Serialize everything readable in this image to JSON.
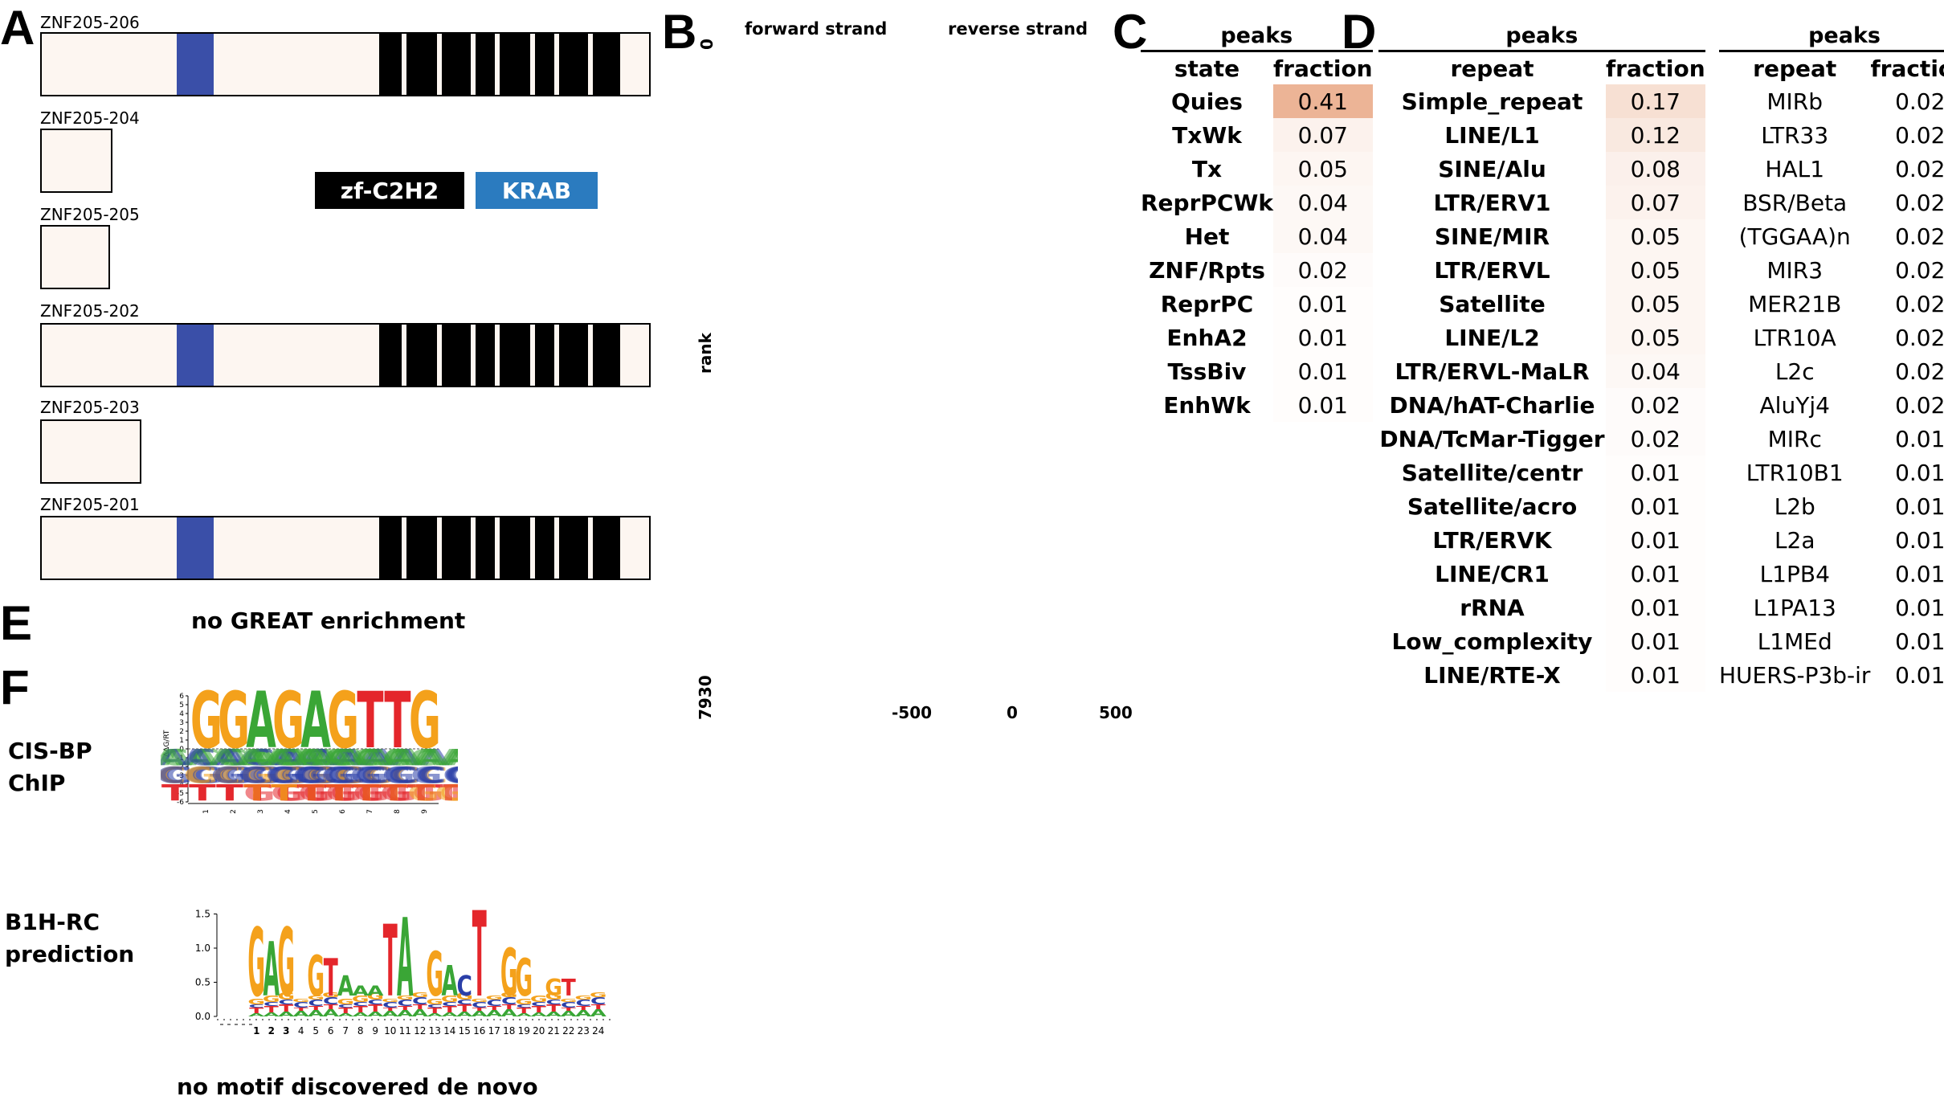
{
  "panels": {
    "A": "A",
    "B": "B",
    "C": "C",
    "D": "D",
    "E": "E",
    "F": "F"
  },
  "panelA": {
    "isoforms": [
      {
        "name": "ZNF205-206"
      },
      {
        "name": "ZNF205-204"
      },
      {
        "name": "ZNF205-205"
      },
      {
        "name": "ZNF205-202"
      },
      {
        "name": "ZNF205-203"
      },
      {
        "name": "ZNF205-201"
      }
    ],
    "legend": {
      "zf": "zf-C2H2",
      "krab": "KRAB"
    },
    "colors": {
      "zf": "#000000",
      "krab": "#2b7bbf",
      "krab_band": "#3a4fa8",
      "box_fill": "#fdf6f1"
    }
  },
  "panelB": {
    "forward": "forward strand",
    "reverse": "reverse strand",
    "rank_label": "rank",
    "rank_top": "0",
    "rank_bottom": "7930",
    "x_ticks": [
      "-500",
      "0",
      "500"
    ]
  },
  "panelC": {
    "group_header": "peaks",
    "col_state": "state",
    "col_fraction": "fraction",
    "rows": [
      {
        "label": "Quies",
        "value": "0.41",
        "fraction": 0.41
      },
      {
        "label": "TxWk",
        "value": "0.07",
        "fraction": 0.07
      },
      {
        "label": "Tx",
        "value": "0.05",
        "fraction": 0.05
      },
      {
        "label": "ReprPCWk",
        "value": "0.04",
        "fraction": 0.04
      },
      {
        "label": "Het",
        "value": "0.04",
        "fraction": 0.04
      },
      {
        "label": "ZNF/Rpts",
        "value": "0.02",
        "fraction": 0.02
      },
      {
        "label": "ReprPC",
        "value": "0.01",
        "fraction": 0.01
      },
      {
        "label": "EnhA2",
        "value": "0.01",
        "fraction": 0.01
      },
      {
        "label": "TssBiv",
        "value": "0.01",
        "fraction": 0.01
      },
      {
        "label": "EnhWk",
        "value": "0.01",
        "fraction": 0.01
      }
    ]
  },
  "panelD": {
    "group_header": "peaks",
    "col_repeat": "repeat",
    "col_fraction": "fraction",
    "left_rows": [
      {
        "label": "Simple_repeat",
        "value": "0.17",
        "fraction": 0.17
      },
      {
        "label": "LINE/L1",
        "value": "0.12",
        "fraction": 0.12
      },
      {
        "label": "SINE/Alu",
        "value": "0.08",
        "fraction": 0.08
      },
      {
        "label": "LTR/ERV1",
        "value": "0.07",
        "fraction": 0.07
      },
      {
        "label": "SINE/MIR",
        "value": "0.05",
        "fraction": 0.05
      },
      {
        "label": "LTR/ERVL",
        "value": "0.05",
        "fraction": 0.05
      },
      {
        "label": "Satellite",
        "value": "0.05",
        "fraction": 0.05
      },
      {
        "label": "LINE/L2",
        "value": "0.05",
        "fraction": 0.05
      },
      {
        "label": "LTR/ERVL-MaLR",
        "value": "0.04",
        "fraction": 0.04
      },
      {
        "label": "DNA/hAT-Charlie",
        "value": "0.02",
        "fraction": 0.02
      },
      {
        "label": "DNA/TcMar-Tigger",
        "value": "0.02",
        "fraction": 0.02
      },
      {
        "label": "Satellite/centr",
        "value": "0.01",
        "fraction": 0.01
      },
      {
        "label": "Satellite/acro",
        "value": "0.01",
        "fraction": 0.01
      },
      {
        "label": "LTR/ERVK",
        "value": "0.01",
        "fraction": 0.01
      },
      {
        "label": "LINE/CR1",
        "value": "0.01",
        "fraction": 0.01
      },
      {
        "label": "rRNA",
        "value": "0.01",
        "fraction": 0.01
      },
      {
        "label": "Low_complexity",
        "value": "0.01",
        "fraction": 0.01
      },
      {
        "label": "LINE/RTE-X",
        "value": "0.01",
        "fraction": 0.01
      }
    ],
    "right_rows": [
      {
        "label": "MIRb",
        "value": "0.02"
      },
      {
        "label": "LTR33",
        "value": "0.02"
      },
      {
        "label": "HAL1",
        "value": "0.02"
      },
      {
        "label": "BSR/Beta",
        "value": "0.02"
      },
      {
        "label": "(TGGAA)n",
        "value": "0.02"
      },
      {
        "label": "MIR3",
        "value": "0.02"
      },
      {
        "label": "MER21B",
        "value": "0.02"
      },
      {
        "label": "LTR10A",
        "value": "0.02"
      },
      {
        "label": "L2c",
        "value": "0.02"
      },
      {
        "label": "AluYj4",
        "value": "0.02"
      },
      {
        "label": "MIRc",
        "value": "0.01"
      },
      {
        "label": "LTR10B1",
        "value": "0.01"
      },
      {
        "label": "L2b",
        "value": "0.01"
      },
      {
        "label": "L2a",
        "value": "0.01"
      },
      {
        "label": "L1PB4",
        "value": "0.01"
      },
      {
        "label": "L1PA13",
        "value": "0.01"
      },
      {
        "label": "L1MEd",
        "value": "0.01"
      },
      {
        "label": "HUERS-P3b-ir",
        "value": "0.01"
      }
    ]
  },
  "panelE": {
    "text": "no GREAT enrichment"
  },
  "panelF": {
    "cisbp_label_1": "CIS-BP",
    "cisbp_label_2": "ChIP",
    "b1h_label_1": "B1H-RC",
    "b1h_label_2": "prediction",
    "denovo": "no motif discovered de novo",
    "logo1": {
      "ylabel": "ΔΔG/RT",
      "yticks": [
        "6",
        "5",
        "4",
        "3",
        "2",
        "1",
        "0",
        "-1",
        "-2",
        "-3",
        "-4",
        "-5",
        "-6"
      ],
      "xticks": [
        "1",
        "2",
        "3",
        "4",
        "5",
        "6",
        "7",
        "8",
        "9"
      ],
      "top_letters": [
        "G",
        "G",
        "A",
        "G",
        "A",
        "G",
        "T",
        "T",
        "G"
      ],
      "rows": [
        "AACACAAAA",
        "CCGCGCCCC",
        "TTTTTTGGT"
      ]
    },
    "logo2": {
      "yticks": [
        "1.5",
        "1.0",
        "0.5",
        "0.0"
      ],
      "xticks": [
        "1",
        "2",
        "3",
        "4",
        "5",
        "6",
        "7",
        "8",
        "9",
        "10",
        "11",
        "12",
        "13",
        "14",
        "15",
        "16",
        "17",
        "18",
        "19",
        "20",
        "21",
        "22",
        "23",
        "24"
      ],
      "main_letters": [
        {
          "pos": "1",
          "l": "G",
          "h": 1.3
        },
        {
          "pos": "2",
          "l": "A",
          "h": 1.1
        },
        {
          "pos": "3",
          "l": "G",
          "h": 1.3
        },
        {
          "pos": "5",
          "l": "G",
          "h": 0.9
        },
        {
          "pos": "6",
          "l": "T",
          "h": 0.85
        },
        {
          "pos": "7",
          "l": "A",
          "h": 0.6
        },
        {
          "pos": "8",
          "l": "A",
          "h": 0.45
        },
        {
          "pos": "9",
          "l": "A",
          "h": 0.25
        },
        {
          "pos": "10",
          "l": "T",
          "h": 1.35
        },
        {
          "pos": "11",
          "l": "A",
          "h": 1.45
        },
        {
          "pos": "13",
          "l": "G",
          "h": 0.95
        },
        {
          "pos": "14",
          "l": "A",
          "h": 0.75
        },
        {
          "pos": "15",
          "l": "C",
          "h": 0.6
        },
        {
          "pos": "16",
          "l": "T",
          "h": 1.55
        },
        {
          "pos": "18",
          "l": "G",
          "h": 1.0
        },
        {
          "pos": "19",
          "l": "G",
          "h": 0.85
        },
        {
          "pos": "21",
          "l": "G",
          "h": 0.55
        },
        {
          "pos": "22",
          "l": "T",
          "h": 0.55
        }
      ]
    },
    "colors": {
      "A": "#3aa636",
      "C": "#2b3fa8",
      "G": "#f4a11b",
      "T": "#e4262b"
    }
  }
}
